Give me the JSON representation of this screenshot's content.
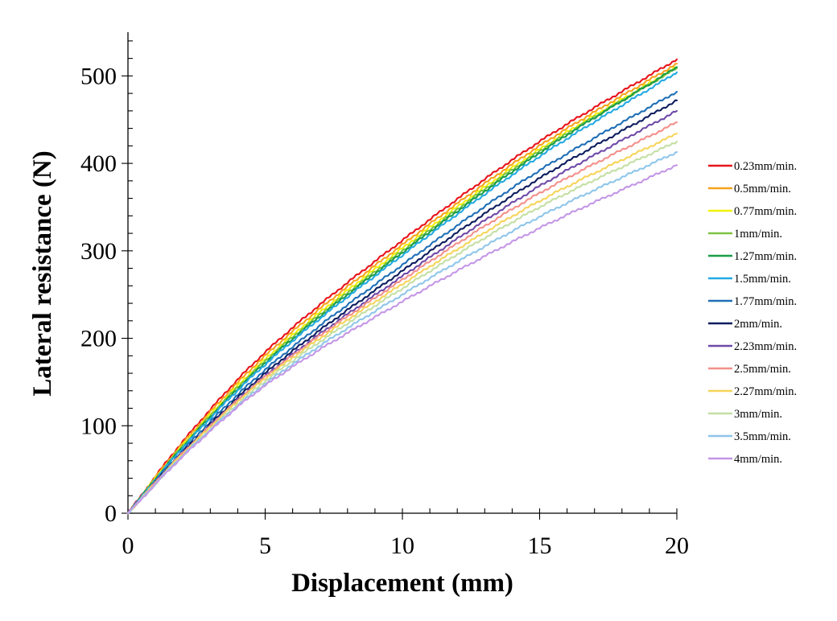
{
  "chart_data": {
    "type": "line",
    "title": "",
    "xlabel": "Displacement (mm)",
    "ylabel": "Lateral resistance (N)",
    "xlim": [
      0,
      20
    ],
    "ylim": [
      0,
      550
    ],
    "xticks": [
      "0",
      "5",
      "10",
      "15",
      "20"
    ],
    "yticks": [
      "0",
      "100",
      "200",
      "300",
      "400",
      "500"
    ],
    "xtick_values": [
      0,
      5,
      10,
      15,
      20
    ],
    "ytick_values": [
      0,
      100,
      200,
      300,
      400,
      500
    ],
    "grid": false,
    "legend_position": "right",
    "series": [
      {
        "name": "0.23mm/min.",
        "color": "#e8131b",
        "x": [
          0,
          2,
          5,
          10,
          15,
          20
        ],
        "y": [
          0,
          82,
          184,
          312,
          425,
          519
        ]
      },
      {
        "name": "0.5mm/min.",
        "color": "#f7a21b",
        "x": [
          0,
          2,
          5,
          10,
          15,
          20
        ],
        "y": [
          0,
          80,
          180,
          307,
          420,
          514
        ]
      },
      {
        "name": "0.77mm/min.",
        "color": "#f2f20a",
        "x": [
          0,
          2,
          5,
          10,
          15,
          20
        ],
        "y": [
          0,
          78,
          176,
          303,
          416,
          510
        ]
      },
      {
        "name": "1mm/min.",
        "color": "#7dc242",
        "x": [
          0,
          2,
          5,
          10,
          15,
          20
        ],
        "y": [
          0,
          77,
          174,
          300,
          414,
          509
        ]
      },
      {
        "name": "1.27mm/min.",
        "color": "#1a9e47",
        "x": [
          0,
          2,
          5,
          10,
          15,
          20
        ],
        "y": [
          0,
          76,
          172,
          298,
          412,
          510
        ]
      },
      {
        "name": "1.5mm/min.",
        "color": "#23aae2",
        "x": [
          0,
          2,
          5,
          10,
          15,
          20
        ],
        "y": [
          0,
          75,
          170,
          295,
          408,
          504
        ]
      },
      {
        "name": "1.77mm/min.",
        "color": "#1f6fb6",
        "x": [
          0,
          2,
          5,
          10,
          15,
          20
        ],
        "y": [
          0,
          72,
          164,
          284,
          392,
          482
        ]
      },
      {
        "name": "2mm/min.",
        "color": "#0d1d5e",
        "x": [
          0,
          2,
          5,
          10,
          15,
          20
        ],
        "y": [
          0,
          70,
          160,
          277,
          383,
          472
        ]
      },
      {
        "name": "2.23mm/min.",
        "color": "#6f4aa8",
        "x": [
          0,
          2,
          5,
          10,
          15,
          20
        ],
        "y": [
          0,
          69,
          157,
          271,
          374,
          460
        ]
      },
      {
        "name": "2.5mm/min.",
        "color": "#f4908b",
        "x": [
          0,
          2,
          5,
          10,
          15,
          20
        ],
        "y": [
          0,
          69,
          156,
          267,
          366,
          447
        ]
      },
      {
        "name": "2.27mm/min.",
        "color": "#f6d55a",
        "x": [
          0,
          2,
          5,
          10,
          15,
          20
        ],
        "y": [
          0,
          68,
          154,
          262,
          357,
          434
        ]
      },
      {
        "name": "3mm/min.",
        "color": "#c4dfa4",
        "x": [
          0,
          2,
          5,
          10,
          15,
          20
        ],
        "y": [
          0,
          66,
          151,
          257,
          350,
          425
        ]
      },
      {
        "name": "3.5mm/min.",
        "color": "#8fc6ea",
        "x": [
          0,
          2,
          5,
          10,
          15,
          20
        ],
        "y": [
          0,
          66,
          148,
          250,
          339,
          413
        ]
      },
      {
        "name": "4mm/min.",
        "color": "#c497e6",
        "x": [
          0,
          2,
          5,
          10,
          15,
          20
        ],
        "y": [
          0,
          65,
          146,
          242,
          326,
          398
        ]
      }
    ]
  }
}
